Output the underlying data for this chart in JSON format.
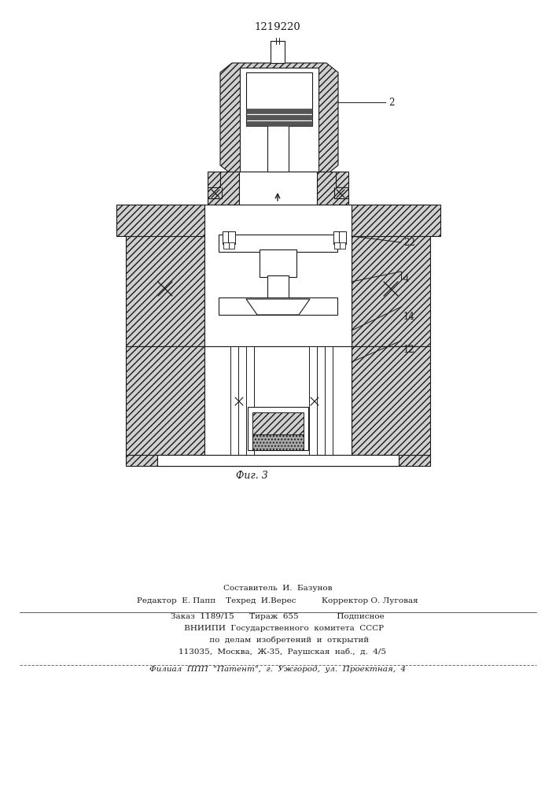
{
  "title": "1219220",
  "fig_caption": "Фиг. 3",
  "label_2": "2",
  "label_4": "4",
  "label_12": "12",
  "label_14": "14",
  "label_22": "22",
  "footer_line1": "Составитель  И.  Базунов",
  "footer_line2": "Редактор  Е. Папп    Техред  И.Верес          Корректор О. Луговая",
  "footer_line3": "Заказ  1189/15      Тираж  655               Подписное",
  "footer_line4": "     ВНИИПИ  Государственного  комитета  СССР",
  "footer_line5": "         по  делам  изобретений  и  открытий",
  "footer_line6": "    113035,  Москва,  Ж-35,  Раушская  наб.,  д.  4/5",
  "footer_line7": "Филиал  ППП  \"Патент\",  г.  Ужгород,  ул.  Проектная,  4",
  "bg_color": "#ffffff",
  "line_color": "#1a1a1a",
  "hatch_color": "#444444"
}
